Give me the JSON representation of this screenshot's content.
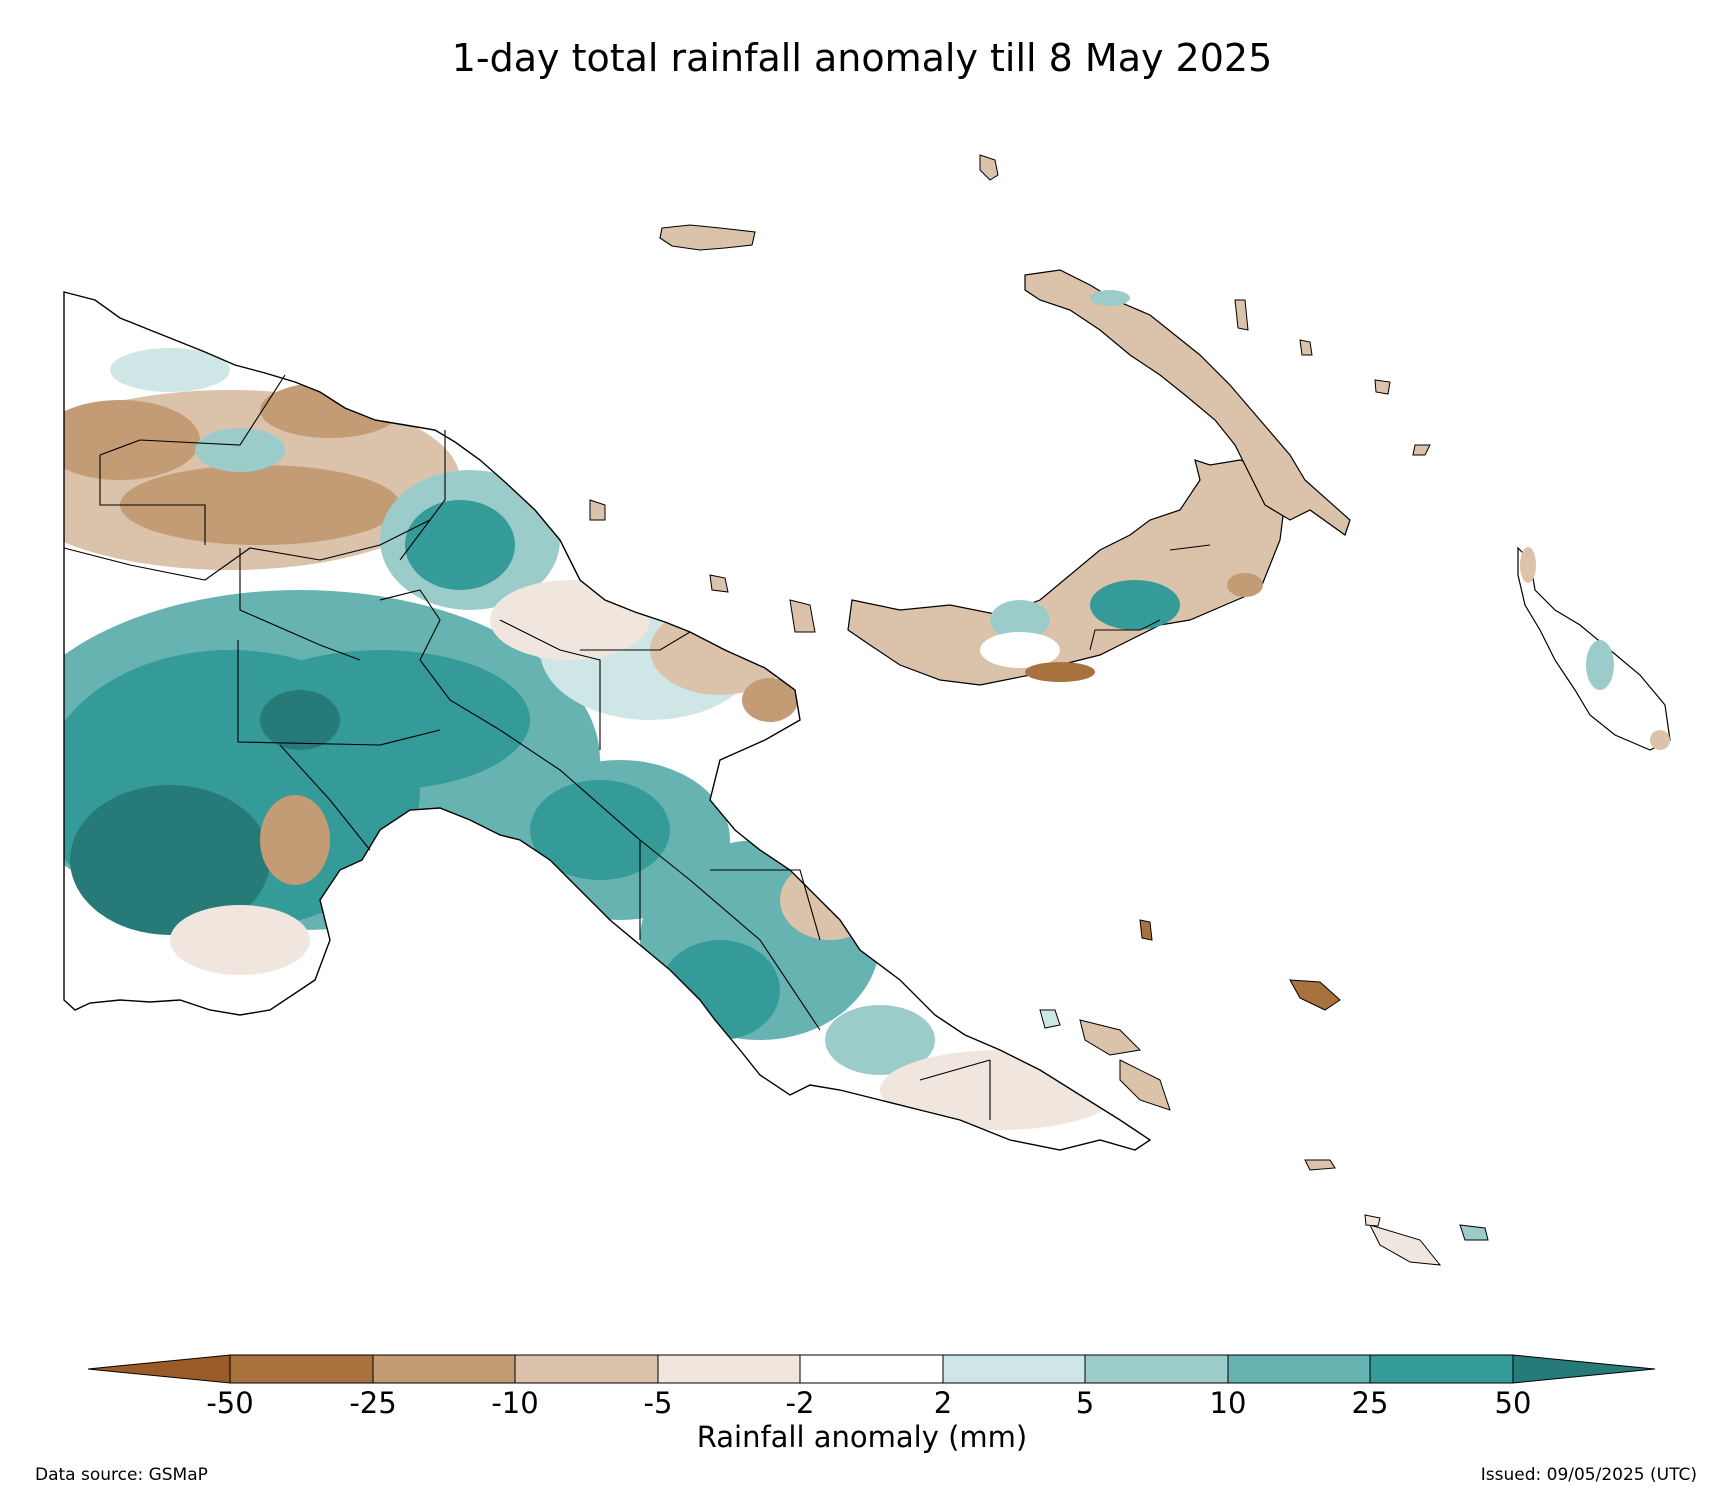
{
  "title": "1-day total rainfall anomaly till 8 May 2025",
  "colorbar": {
    "label": "Rainfall anomaly (mm)",
    "ticks": [
      "-50",
      "-25",
      "-10",
      "-5",
      "-2",
      "2",
      "5",
      "10",
      "25",
      "50"
    ],
    "colors": [
      "#9a5b28",
      "#a8723d",
      "#c39b74",
      "#dbc2aa",
      "#f0e6dd",
      "#ffffff",
      "#cfe6e6",
      "#9cccca",
      "#66b3b2",
      "#349b98",
      "#267a78"
    ]
  },
  "footer": {
    "source": "Data source: GSMaP",
    "issued": "Issued: 09/05/2025 (UTC)"
  }
}
